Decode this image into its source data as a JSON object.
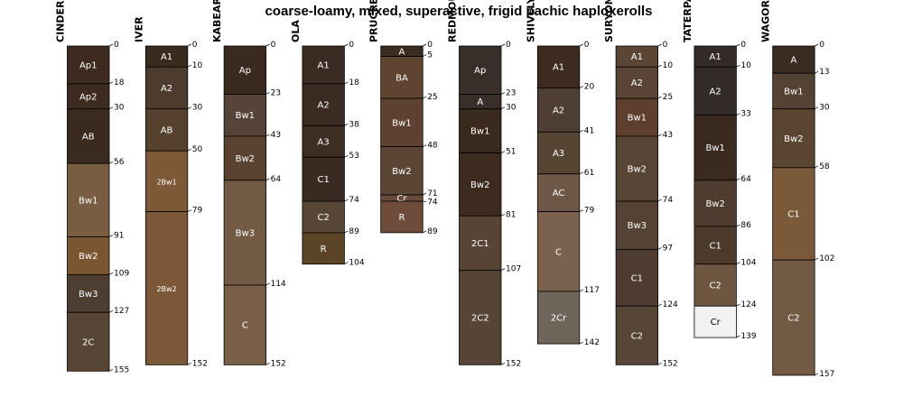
{
  "chart_data": {
    "type": "soil_profile_sketch",
    "title": "coarse-loamy, mixed, superactive, frigid pachic haploxerolls",
    "depth_unit": "cm",
    "max_depth": 157,
    "profiles": [
      {
        "name": "CINDERSPRING",
        "horizons": [
          {
            "name": "Ap1",
            "top": 0,
            "bottom": 18,
            "color": "#3d2b20"
          },
          {
            "name": "Ap2",
            "top": 18,
            "bottom": 30,
            "color": "#3d2b20"
          },
          {
            "name": "AB",
            "top": 30,
            "bottom": 56,
            "color": "#3b2a1f"
          },
          {
            "name": "Bw1",
            "top": 56,
            "bottom": 91,
            "color": "#7a5c43"
          },
          {
            "name": "Bw2",
            "top": 91,
            "bottom": 109,
            "color": "#7a5632"
          },
          {
            "name": "Bw3",
            "top": 109,
            "bottom": 127,
            "color": "#4e3d31"
          },
          {
            "name": "2C",
            "top": 127,
            "bottom": 155,
            "color": "#574536"
          }
        ]
      },
      {
        "name": "IVER",
        "horizons": [
          {
            "name": "A1",
            "top": 0,
            "bottom": 10,
            "color": "#3b2a1e"
          },
          {
            "name": "A2",
            "top": 10,
            "bottom": 30,
            "color": "#4d3b2d"
          },
          {
            "name": "AB",
            "top": 30,
            "bottom": 50,
            "color": "#56412f"
          },
          {
            "name": "2Bw1",
            "top": 50,
            "bottom": 79,
            "color": "#7d5938"
          },
          {
            "name": "2Bw2",
            "top": 79,
            "bottom": 152,
            "color": "#7d5838"
          }
        ]
      },
      {
        "name": "KABEAR",
        "horizons": [
          {
            "name": "Ap",
            "top": 0,
            "bottom": 23,
            "color": "#3a2a1f"
          },
          {
            "name": "Bw1",
            "top": 23,
            "bottom": 43,
            "color": "#56443a"
          },
          {
            "name": "Bw2",
            "top": 43,
            "bottom": 64,
            "color": "#5a4330"
          },
          {
            "name": "Bw3",
            "top": 64,
            "bottom": 114,
            "color": "#735a44"
          },
          {
            "name": "C",
            "top": 114,
            "bottom": 152,
            "color": "#7a5f48"
          }
        ]
      },
      {
        "name": "OLA",
        "horizons": [
          {
            "name": "A1",
            "top": 0,
            "bottom": 18,
            "color": "#3b2b22"
          },
          {
            "name": "A2",
            "top": 18,
            "bottom": 38,
            "color": "#3b2b22"
          },
          {
            "name": "A3",
            "top": 38,
            "bottom": 53,
            "color": "#3d2d22"
          },
          {
            "name": "C1",
            "top": 53,
            "bottom": 74,
            "color": "#3a2b22"
          },
          {
            "name": "C2",
            "top": 74,
            "bottom": 89,
            "color": "#574535"
          },
          {
            "name": "R",
            "top": 89,
            "bottom": 104,
            "color": "#5c4426"
          }
        ]
      },
      {
        "name": "PRUCREE",
        "horizons": [
          {
            "name": "A",
            "top": 0,
            "bottom": 5,
            "color": "#3d2c20"
          },
          {
            "name": "BA",
            "top": 5,
            "bottom": 25,
            "color": "#5e4431"
          },
          {
            "name": "Bw1",
            "top": 25,
            "bottom": 48,
            "color": "#5e4130"
          },
          {
            "name": "Bw2",
            "top": 48,
            "bottom": 71,
            "color": "#5b4535"
          },
          {
            "name": "Cr",
            "top": 71,
            "bottom": 74,
            "color": "#6a4c3c"
          },
          {
            "name": "R",
            "top": 74,
            "bottom": 89,
            "color": "#6e4b3b"
          }
        ]
      },
      {
        "name": "REDMOUNT",
        "horizons": [
          {
            "name": "Ap",
            "top": 0,
            "bottom": 23,
            "color": "#3a2e2a"
          },
          {
            "name": "A",
            "top": 23,
            "bottom": 30,
            "color": "#3a2e2a"
          },
          {
            "name": "Bw1",
            "top": 30,
            "bottom": 51,
            "color": "#3a291d"
          },
          {
            "name": "Bw2",
            "top": 51,
            "bottom": 81,
            "color": "#3d2b20"
          },
          {
            "name": "2C1",
            "top": 81,
            "bottom": 107,
            "color": "#574434"
          },
          {
            "name": "2C2",
            "top": 107,
            "bottom": 152,
            "color": "#564434"
          }
        ]
      },
      {
        "name": "SHIVELY",
        "horizons": [
          {
            "name": "A1",
            "top": 0,
            "bottom": 20,
            "color": "#3d2b20"
          },
          {
            "name": "A2",
            "top": 20,
            "bottom": 41,
            "color": "#4f3e33"
          },
          {
            "name": "A3",
            "top": 41,
            "bottom": 61,
            "color": "#574534"
          },
          {
            "name": "AC",
            "top": 61,
            "bottom": 79,
            "color": "#6e5847"
          },
          {
            "name": "C",
            "top": 79,
            "bottom": 117,
            "color": "#7a624f"
          },
          {
            "name": "2Cr",
            "top": 117,
            "bottom": 142,
            "color": "#6e6459"
          }
        ]
      },
      {
        "name": "SURYON",
        "horizons": [
          {
            "name": "A1",
            "top": 0,
            "bottom": 10,
            "color": "#5b4636"
          },
          {
            "name": "A2",
            "top": 10,
            "bottom": 25,
            "color": "#5a4435"
          },
          {
            "name": "Bw1",
            "top": 25,
            "bottom": 43,
            "color": "#5e3e2f"
          },
          {
            "name": "Bw2",
            "top": 43,
            "bottom": 74,
            "color": "#574535"
          },
          {
            "name": "Bw3",
            "top": 74,
            "bottom": 97,
            "color": "#544234"
          },
          {
            "name": "C1",
            "top": 97,
            "bottom": 124,
            "color": "#4f3c30"
          },
          {
            "name": "C2",
            "top": 124,
            "bottom": 152,
            "color": "#574535"
          }
        ]
      },
      {
        "name": "TATERPA",
        "horizons": [
          {
            "name": "A1",
            "top": 0,
            "bottom": 10,
            "color": "#332b28"
          },
          {
            "name": "A2",
            "top": 10,
            "bottom": 33,
            "color": "#332b28"
          },
          {
            "name": "Bw1",
            "top": 33,
            "bottom": 64,
            "color": "#3a2a20"
          },
          {
            "name": "Bw2",
            "top": 64,
            "bottom": 86,
            "color": "#4d3c2f"
          },
          {
            "name": "C1",
            "top": 86,
            "bottom": 104,
            "color": "#4e3a2a"
          },
          {
            "name": "C2",
            "top": 104,
            "bottom": 124,
            "color": "#6e5640"
          },
          {
            "name": "Cr",
            "top": 124,
            "bottom": 139,
            "color": "#f2f2f2"
          }
        ]
      },
      {
        "name": "WAGORE",
        "horizons": [
          {
            "name": "A",
            "top": 0,
            "bottom": 13,
            "color": "#3b2c23"
          },
          {
            "name": "Bw1",
            "top": 13,
            "bottom": 30,
            "color": "#544234"
          },
          {
            "name": "Bw2",
            "top": 30,
            "bottom": 58,
            "color": "#5a4531"
          },
          {
            "name": "C1",
            "top": 58,
            "bottom": 102,
            "color": "#7a5a38"
          },
          {
            "name": "C2",
            "top": 102,
            "bottom": 157,
            "color": "#735a44"
          }
        ]
      }
    ]
  }
}
